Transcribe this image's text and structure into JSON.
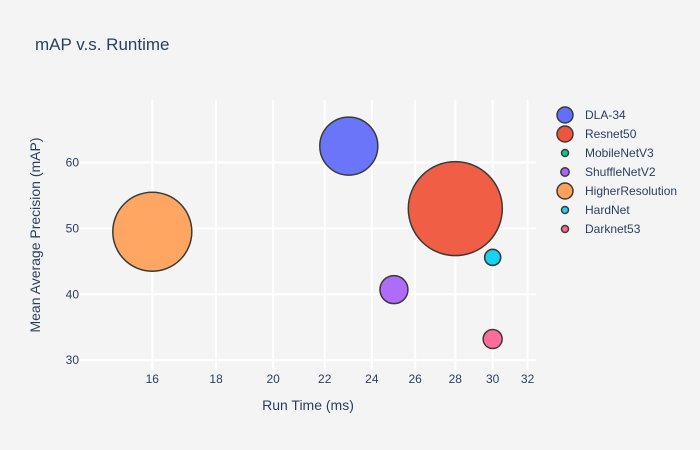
{
  "chart_data": {
    "type": "scatter",
    "title": "mAP v.s. Runtime",
    "xlabel": "Run Time (ms)",
    "ylabel": "Mean Average Precision (mAP)",
    "x_scale": "log",
    "xlim": [
      14,
      32.5
    ],
    "ylim": [
      28.5,
      69.5
    ],
    "x_ticks": [
      16,
      18,
      20,
      22,
      24,
      26,
      28,
      30,
      32
    ],
    "y_ticks": [
      30,
      40,
      50,
      60
    ],
    "grid": true,
    "legend": "right",
    "bubble_size_meaning": "model size (relative)",
    "series": [
      {
        "name": "DLA-34",
        "x": 23,
        "y": 62.5,
        "size": 18,
        "color": "#636efa"
      },
      {
        "name": "Resnet50",
        "x": 28,
        "y": 53,
        "size": 30,
        "color": "#ef553b"
      },
      {
        "name": "MobileNetV3",
        "x": 30,
        "y": 45.6,
        "size": 4,
        "color": "#00cc96"
      },
      {
        "name": "ShuffleNetV2",
        "x": 25,
        "y": 40.7,
        "size": 8,
        "color": "#ab63fa"
      },
      {
        "name": "HigherResolution",
        "x": 16,
        "y": 49.5,
        "size": 25,
        "color": "#ffa15a"
      },
      {
        "name": "HardNet",
        "x": 30,
        "y": 45.6,
        "size": 4,
        "color": "#19d3f3"
      },
      {
        "name": "Darknet53",
        "x": 30,
        "y": 33.2,
        "size": 5,
        "color": "#ff6692"
      }
    ]
  }
}
